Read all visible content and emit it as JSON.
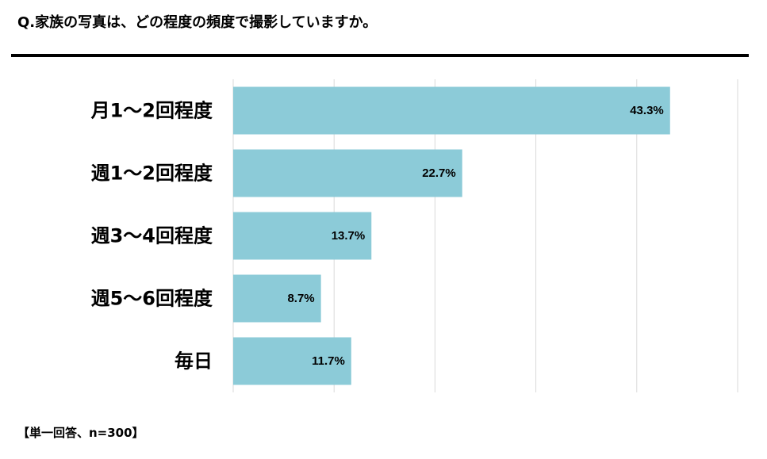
{
  "question": "Q.家族の写真は、どの程度の頻度で撮影していますか。",
  "note": "【単一回答、n=300】",
  "colors": {
    "bar": "#8ccbd8",
    "grid": "#d9d9d9",
    "text": "#000000"
  },
  "chart_data": {
    "type": "bar",
    "orientation": "horizontal",
    "categories": [
      "月1～2回程度",
      "週1～2回程度",
      "週3～4回程度",
      "週5～6回程度",
      "毎日"
    ],
    "values": [
      43.3,
      22.7,
      13.7,
      8.7,
      11.7
    ],
    "data_labels": [
      "43.3%",
      "22.7%",
      "13.7%",
      "8.7%",
      "11.7%"
    ],
    "xlim": [
      0,
      50
    ],
    "grid": true,
    "legend": "none"
  }
}
